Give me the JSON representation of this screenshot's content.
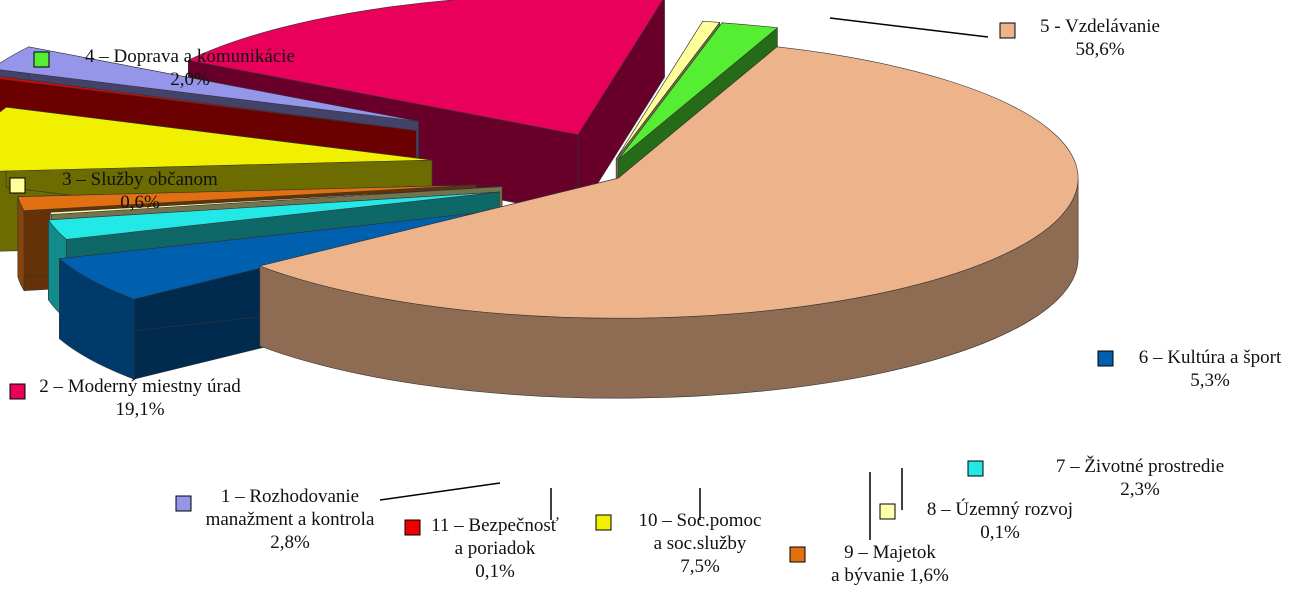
{
  "chart_data": {
    "type": "pie",
    "style": "3d-exploded",
    "title": "",
    "slices": [
      {
        "number": "1",
        "label": "Rozhodovanie, manažment a kontrola",
        "lines": [
          "1 – Rozhodovanie",
          "manažment a kontrola",
          "2,8%"
        ],
        "value": 2.8,
        "color": "#9595ea"
      },
      {
        "number": "2",
        "label": "Moderný miestny úrad",
        "lines": [
          "2 – Moderný miestny úrad",
          "19,1%"
        ],
        "value": 19.1,
        "color": "#e8005a"
      },
      {
        "number": "3",
        "label": "Služby občanom",
        "lines": [
          "3 – Služby občanom",
          "0,6%"
        ],
        "value": 0.6,
        "color": "#ffff99"
      },
      {
        "number": "4",
        "label": "Doprava a komunikácie",
        "lines": [
          "4 – Doprava a komunikácie",
          "2,0%"
        ],
        "value": 2.0,
        "color": "#55ee33"
      },
      {
        "number": "5",
        "label": "Vzdelávanie",
        "lines": [
          "5 - Vzdelávanie",
          "58,6%"
        ],
        "value": 58.6,
        "color": "#edb38a"
      },
      {
        "number": "6",
        "label": "Kultúra a šport",
        "lines": [
          "6 – Kultúra a šport",
          "5,3%"
        ],
        "value": 5.3,
        "color": "#0060b0"
      },
      {
        "number": "7",
        "label": "Životné prostredie",
        "lines": [
          "7 – Životné prostredie",
          "2,3%"
        ],
        "value": 2.3,
        "color": "#22e8e8"
      },
      {
        "number": "8",
        "label": "Územný rozvoj",
        "lines": [
          "8 – Územný  rozvoj",
          "0,1%"
        ],
        "value": 0.1,
        "color": "#ffffaa"
      },
      {
        "number": "9",
        "label": "Majetok a bývanie",
        "lines": [
          "9 – Majetok",
          "a bývanie 1,6%"
        ],
        "value": 1.6,
        "color": "#e07010"
      },
      {
        "number": "10",
        "label": "Soc.pomoc a soc.služby",
        "lines": [
          "10 – Soc.pomoc",
          "a soc.služby",
          "7,5%"
        ],
        "value": 7.5,
        "color": "#f0f000"
      },
      {
        "number": "11",
        "label": "Bezpečnosť a poriadok",
        "lines": [
          "11 – Bezpečnosť",
          "a poriadok",
          "0,1%"
        ],
        "value": 0.1,
        "color": "#ee0000"
      }
    ]
  }
}
